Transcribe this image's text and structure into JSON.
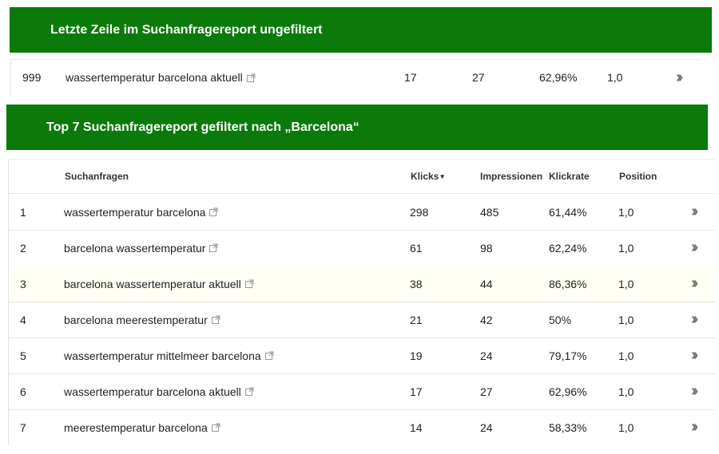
{
  "banner_top": {
    "title": "Letzte Zeile im Suchanfragereport ungefiltert"
  },
  "unfiltered_row": {
    "rank": "999",
    "query": "wassertemperatur barcelona aktuell",
    "clicks": "17",
    "impressions": "27",
    "ctr": "62,96%",
    "position": "1,0",
    "more_icon": "double-chevron-right"
  },
  "banner_bottom": {
    "title": "Top 7 Suchanfragereport gefiltert nach „Barcelona“"
  },
  "table": {
    "columns": {
      "query": "Suchanfragen",
      "clicks": "Klicks",
      "clicks_sort_icon": "▾",
      "impressions": "Impressionen",
      "ctr": "Klickrate",
      "position": "Position"
    },
    "rows": [
      {
        "rank": "1",
        "query": "wassertemperatur barcelona",
        "clicks": "298",
        "impressions": "485",
        "ctr": "61,44%",
        "position": "1,0"
      },
      {
        "rank": "2",
        "query": "barcelona wassertemperatur",
        "clicks": "61",
        "impressions": "98",
        "ctr": "62,24%",
        "position": "1,0"
      },
      {
        "rank": "3",
        "query": "barcelona wassertemperatur aktuell",
        "clicks": "38",
        "impressions": "44",
        "ctr": "86,36%",
        "position": "1,0"
      },
      {
        "rank": "4",
        "query": "barcelona meerestemperatur",
        "clicks": "21",
        "impressions": "42",
        "ctr": "50%",
        "position": "1,0"
      },
      {
        "rank": "5",
        "query": "wassertemperatur mittelmeer barcelona",
        "clicks": "19",
        "impressions": "24",
        "ctr": "79,17%",
        "position": "1,0"
      },
      {
        "rank": "6",
        "query": "wassertemperatur barcelona aktuell",
        "clicks": "17",
        "impressions": "27",
        "ctr": "62,96%",
        "position": "1,0"
      },
      {
        "rank": "7",
        "query": "meerestemperatur barcelona",
        "clicks": "14",
        "impressions": "24",
        "ctr": "58,33%",
        "position": "1,0"
      }
    ],
    "highlighted_row_rank": "3",
    "row_action_icon": "double-chevron-right",
    "external_link_icon": "external-link"
  },
  "colors": {
    "banner_bg": "#0b7a0b",
    "highlight": "#fbfb2a"
  }
}
